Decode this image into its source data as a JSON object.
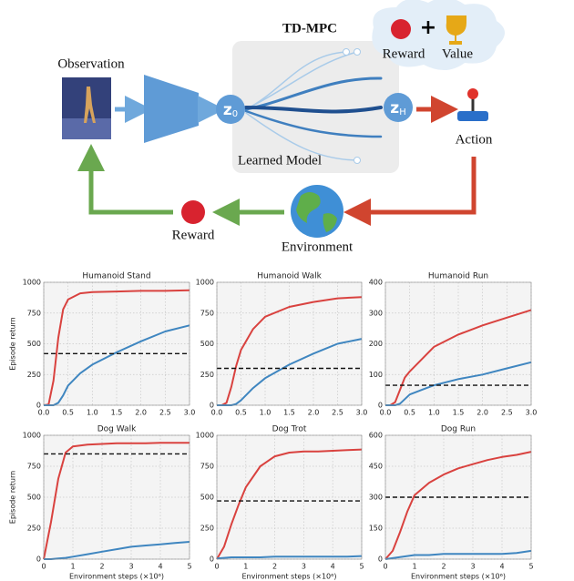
{
  "diagram": {
    "title": "TD-MPC",
    "observation": "Observation",
    "learned_model": "Learned Model",
    "action": "Action",
    "environment": "Environment",
    "reward": "Reward",
    "cloud": {
      "reward": "Reward",
      "value": "Value"
    },
    "z0": {
      "symbol": "z",
      "subscript": "0"
    },
    "zH": {
      "symbol": "z",
      "subscript": "H"
    }
  },
  "chart_data": [
    {
      "type": "line",
      "title": "Humanoid Stand",
      "ylabel": "Episode return",
      "x": [
        0,
        0.1,
        0.2,
        0.3,
        0.4,
        0.5,
        0.75,
        1.0,
        1.5,
        2.0,
        2.5,
        3.0
      ],
      "series": [
        {
          "color": "#d9423f",
          "values": [
            0,
            5,
            200,
            550,
            780,
            860,
            910,
            920,
            925,
            930,
            930,
            935
          ]
        },
        {
          "color": "#3f86c0",
          "values": [
            0,
            0,
            0,
            20,
            80,
            160,
            260,
            330,
            430,
            520,
            600,
            650
          ]
        }
      ],
      "reference": 420,
      "xlim": [
        0,
        3
      ],
      "ylim": [
        0,
        1000
      ],
      "xticks": [
        {
          "value": 0,
          "label": "0.0"
        },
        {
          "value": 0.5,
          "label": "0.5"
        },
        {
          "value": 1,
          "label": "1.0"
        },
        {
          "value": 1.5,
          "label": "1.5"
        },
        {
          "value": 2,
          "label": "2.0"
        },
        {
          "value": 2.5,
          "label": "2.5"
        },
        {
          "value": 3,
          "label": "3.0"
        }
      ],
      "yticks": [
        0,
        250,
        500,
        750,
        1000
      ],
      "grid": true
    },
    {
      "type": "line",
      "title": "Humanoid Walk",
      "x": [
        0,
        0.1,
        0.2,
        0.3,
        0.4,
        0.5,
        0.75,
        1.0,
        1.5,
        2.0,
        2.5,
        3.0
      ],
      "series": [
        {
          "color": "#d9423f",
          "values": [
            0,
            0,
            20,
            150,
            320,
            450,
            620,
            720,
            800,
            840,
            870,
            880
          ]
        },
        {
          "color": "#3f86c0",
          "values": [
            0,
            0,
            0,
            0,
            10,
            40,
            140,
            220,
            330,
            420,
            500,
            540
          ]
        }
      ],
      "reference": 300,
      "xlim": [
        0,
        3
      ],
      "ylim": [
        0,
        1000
      ],
      "xticks": [
        {
          "value": 0,
          "label": "0.0"
        },
        {
          "value": 0.5,
          "label": "0.5"
        },
        {
          "value": 1,
          "label": "1.0"
        },
        {
          "value": 1.5,
          "label": "1.5"
        },
        {
          "value": 2,
          "label": "2.0"
        },
        {
          "value": 2.5,
          "label": "2.5"
        },
        {
          "value": 3,
          "label": "3.0"
        }
      ],
      "yticks": [
        0,
        250,
        500,
        750,
        1000
      ],
      "grid": true
    },
    {
      "type": "line",
      "title": "Humanoid Run",
      "x": [
        0,
        0.1,
        0.2,
        0.3,
        0.4,
        0.5,
        0.75,
        1.0,
        1.5,
        2.0,
        2.5,
        3.0
      ],
      "series": [
        {
          "color": "#d9423f",
          "values": [
            0,
            0,
            10,
            50,
            90,
            110,
            150,
            190,
            230,
            260,
            285,
            310
          ]
        },
        {
          "color": "#3f86c0",
          "values": [
            0,
            0,
            0,
            5,
            20,
            35,
            50,
            65,
            85,
            100,
            120,
            140
          ]
        }
      ],
      "reference": 65,
      "xlim": [
        0,
        3
      ],
      "ylim": [
        0,
        400
      ],
      "xticks": [
        {
          "value": 0,
          "label": "0.0"
        },
        {
          "value": 0.5,
          "label": "0.5"
        },
        {
          "value": 1,
          "label": "1.0"
        },
        {
          "value": 1.5,
          "label": "1.5"
        },
        {
          "value": 2,
          "label": "2.0"
        },
        {
          "value": 2.5,
          "label": "2.5"
        },
        {
          "value": 3,
          "label": "3.0"
        }
      ],
      "yticks": [
        0,
        100,
        200,
        300,
        400
      ],
      "grid": true
    },
    {
      "type": "line",
      "title": "Dog Walk",
      "ylabel": "Episode return",
      "xlabel": "Environment steps (×10⁶)",
      "x": [
        0,
        0.25,
        0.5,
        0.75,
        1,
        1.5,
        2,
        2.5,
        3,
        3.5,
        4,
        4.5,
        5
      ],
      "series": [
        {
          "color": "#d9423f",
          "values": [
            0,
            300,
            650,
            860,
            910,
            925,
            930,
            935,
            935,
            935,
            940,
            940,
            940
          ]
        },
        {
          "color": "#3f86c0",
          "values": [
            0,
            0,
            5,
            10,
            20,
            40,
            60,
            80,
            100,
            110,
            120,
            130,
            140
          ]
        }
      ],
      "reference": 850,
      "xlim": [
        0,
        5
      ],
      "ylim": [
        0,
        1000
      ],
      "xticks": [
        0,
        1,
        2,
        3,
        4,
        5
      ],
      "yticks": [
        0,
        250,
        500,
        750,
        1000
      ],
      "grid": true
    },
    {
      "type": "line",
      "title": "Dog Trot",
      "xlabel": "Environment steps (×10⁶)",
      "x": [
        0,
        0.25,
        0.5,
        0.75,
        1,
        1.5,
        2,
        2.5,
        3,
        3.5,
        4,
        4.5,
        5
      ],
      "series": [
        {
          "color": "#d9423f",
          "values": [
            0,
            100,
            280,
            440,
            580,
            750,
            830,
            860,
            870,
            870,
            875,
            880,
            885
          ]
        },
        {
          "color": "#3f86c0",
          "values": [
            5,
            10,
            15,
            15,
            15,
            15,
            20,
            20,
            20,
            20,
            20,
            20,
            25
          ]
        }
      ],
      "reference": 470,
      "xlim": [
        0,
        5
      ],
      "ylim": [
        0,
        1000
      ],
      "xticks": [
        0,
        1,
        2,
        3,
        4,
        5
      ],
      "yticks": [
        0,
        250,
        500,
        750,
        1000
      ],
      "grid": true
    },
    {
      "type": "line",
      "title": "Dog Run",
      "xlabel": "Environment steps (×10⁶)",
      "x": [
        0,
        0.25,
        0.5,
        0.75,
        1,
        1.5,
        2,
        2.5,
        3,
        3.5,
        4,
        4.5,
        5
      ],
      "series": [
        {
          "color": "#d9423f",
          "values": [
            0,
            40,
            130,
            230,
            310,
            370,
            410,
            440,
            460,
            480,
            495,
            505,
            520
          ]
        },
        {
          "color": "#3f86c0",
          "values": [
            0,
            5,
            10,
            15,
            20,
            20,
            25,
            25,
            25,
            25,
            25,
            30,
            40
          ]
        }
      ],
      "reference": 300,
      "xlim": [
        0,
        5
      ],
      "ylim": [
        0,
        600
      ],
      "xticks": [
        0,
        1,
        2,
        3,
        4,
        5
      ],
      "yticks": [
        0,
        150,
        300,
        450,
        600
      ],
      "grid": true
    }
  ]
}
